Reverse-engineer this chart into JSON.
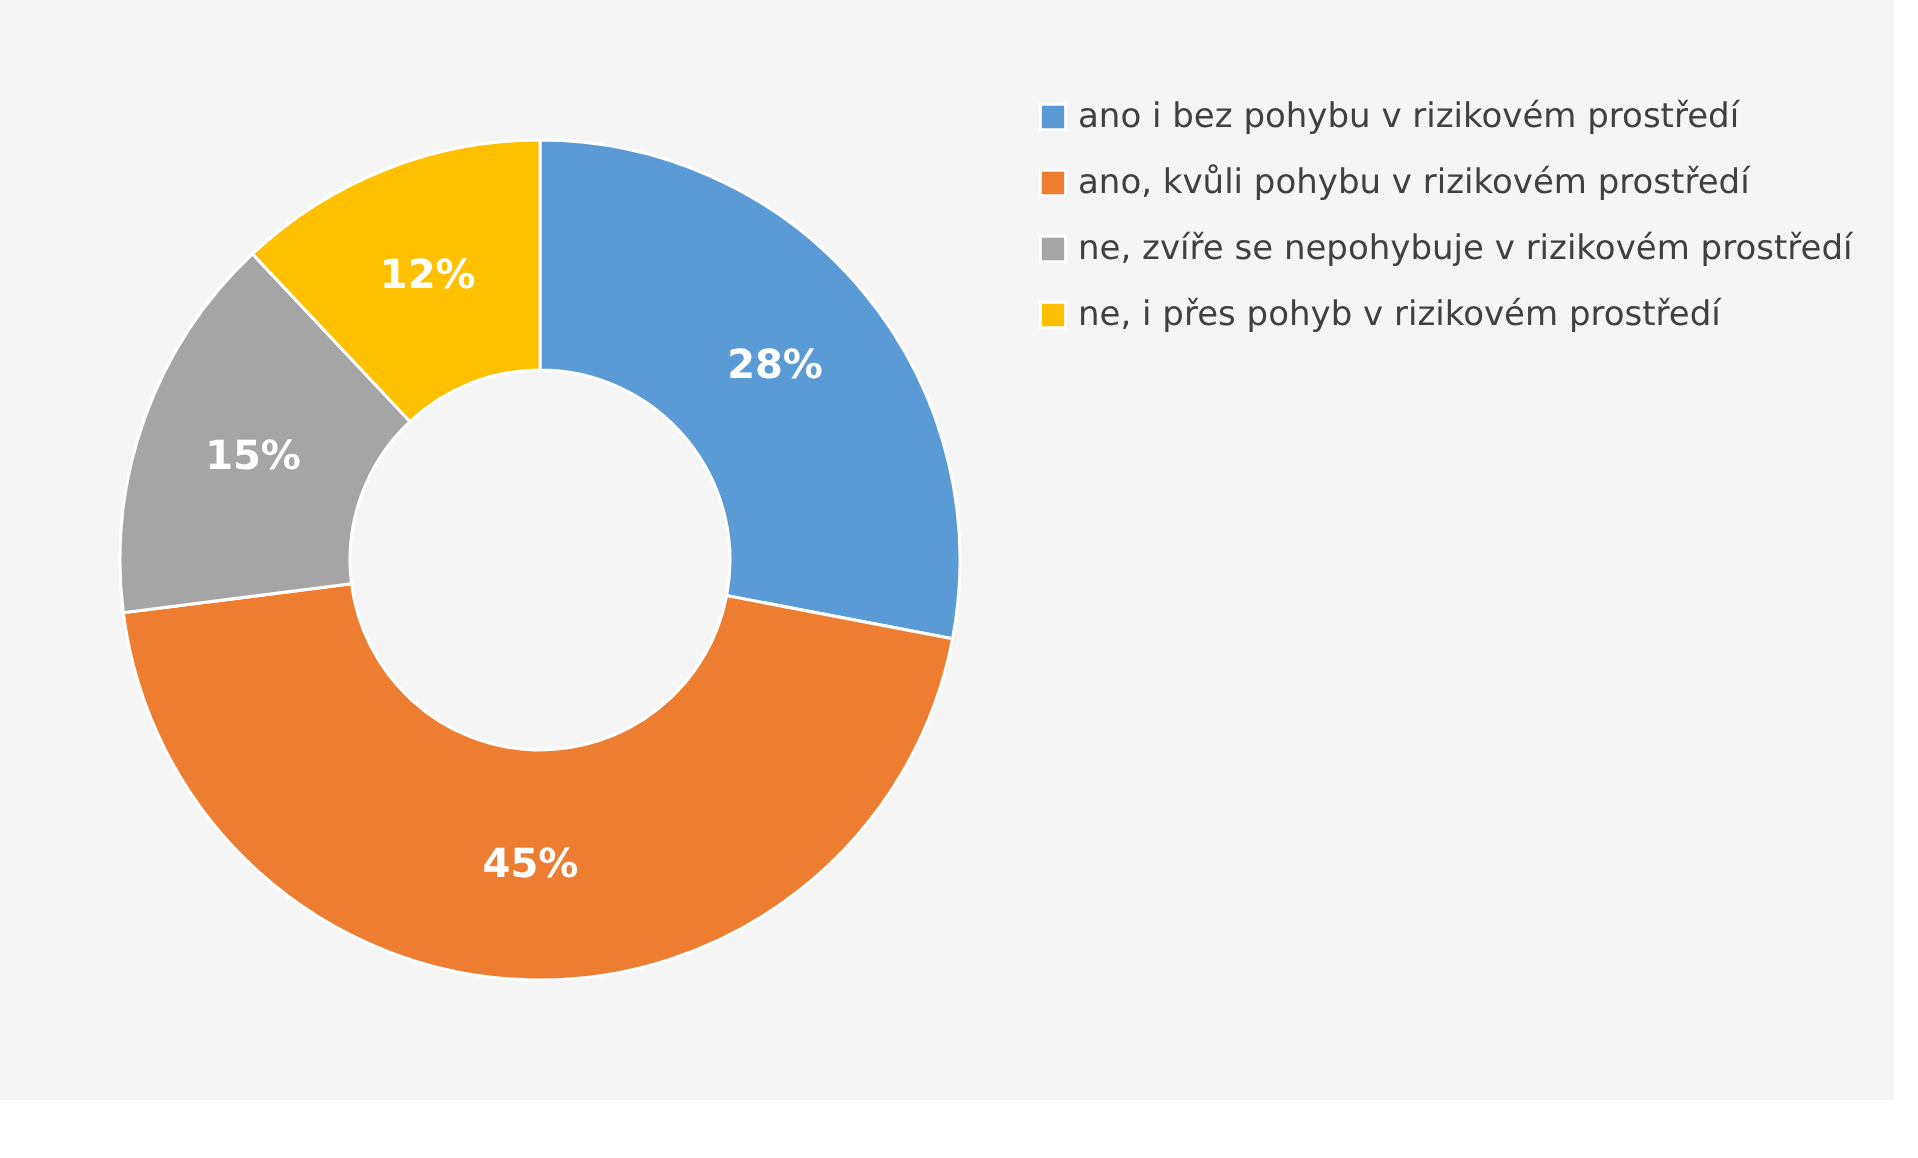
{
  "chart_data": {
    "type": "donut",
    "categories": [
      "ano i bez pohybu v rizikovém prostředí",
      "ano, kvůli pohybu v rizikovém prostředí",
      "ne, zvíře se nepohybuje v rizikovém prostředí",
      "ne, i přes pohyb v rizikovém prostředí"
    ],
    "values": [
      28,
      45,
      15,
      12
    ],
    "colors": [
      "#5b9bd5",
      "#ed7d31",
      "#a5a5a5",
      "#ffc000"
    ],
    "value_labels": [
      "28%",
      "45%",
      "15%",
      "12%"
    ],
    "legend": "right"
  }
}
